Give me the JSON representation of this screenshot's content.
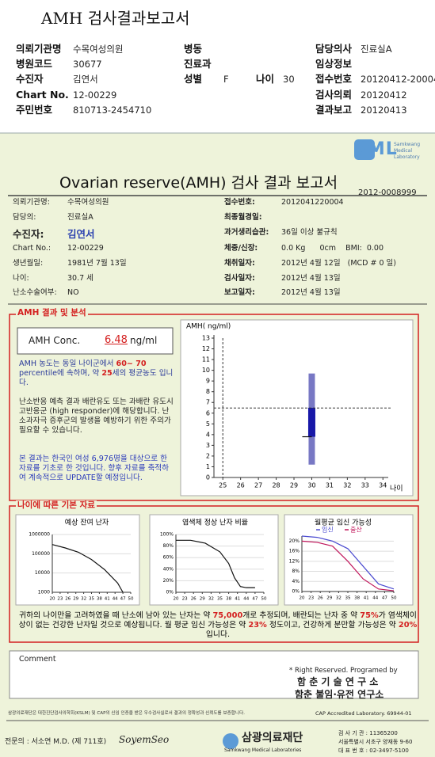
{
  "header": {
    "title": "AMH 검사결과보고서",
    "fields": [
      {
        "label": "의뢰기관명",
        "value": "수목여성의원"
      },
      {
        "label": "병동"
      },
      {
        "label": "담당의사",
        "value": "진료실A"
      },
      {
        "label": "병원코드",
        "value": "30677"
      },
      {
        "label": "진료과"
      },
      {
        "label": "임상정보"
      },
      {
        "label": "수진자",
        "value": "김연서"
      },
      {
        "label": "성별",
        "value": "F"
      },
      {
        "label": "나이",
        "value": "30"
      },
      {
        "label": "접수번호",
        "value": "20120412-20004"
      },
      {
        "label": "Chart No.",
        "value": "12-00229"
      },
      {
        "label": "검사의뢰",
        "value": "20120412"
      },
      {
        "label": "주민번호",
        "value": "810713-2454710"
      },
      {
        "label": "결과보고",
        "value": "20120413"
      }
    ]
  },
  "report": {
    "logo": "SML",
    "logo_sub": [
      "Samkwang",
      "Medical",
      "Laboratory"
    ],
    "title": "Ovarian reserve(AMH) 검사 결과 보고서",
    "doc_no": "2012-0008999",
    "patient_left": [
      {
        "label": "의뢰기관명:",
        "value": "수목여성의원"
      },
      {
        "label": "담당의:",
        "value": "진료실A"
      },
      {
        "label": "수진자:",
        "value": "김연서"
      },
      {
        "label": "Chart No.:",
        "value": "12-00229"
      },
      {
        "label": "생년월일:",
        "value": "1981년 7월 13일"
      },
      {
        "label": "나이:",
        "value": "30.7 세"
      },
      {
        "label": "난소수술여부:",
        "value": "NO"
      }
    ],
    "patient_right": [
      {
        "label": "접수번호:",
        "value": "2012041220004"
      },
      {
        "label": "최종월경일:"
      },
      {
        "label": "과거생리습관:",
        "value": "36일 이상 불규칙"
      },
      {
        "label": "체중/신장:",
        "value": "0.0 Kg      0cm    BMI:  0.00"
      },
      {
        "label": "채취일자:",
        "value": "2012년 4월 12일   (MCD # 0 일)"
      },
      {
        "label": "검사일자:",
        "value": "2012년 4월 13일"
      },
      {
        "label": "보고일자:",
        "value": "2012년 4월 13일"
      }
    ]
  },
  "amh": {
    "section_title": "AMH 결과 및 분석",
    "conc_label": "AMH Conc.",
    "conc_value": "6.48",
    "conc_unit": "ng/ml",
    "para1": [
      "AMH 농도는 동일 나이군에서 ",
      "60~ 70",
      " percentile에 속하며, 약 ",
      "25",
      "세의 평균농도 입니다."
    ],
    "para2": "난소반응 예측 결과 배란유도 또는 과배란 유도시 고반응군 (high responder)에 해당합니다. 난소과자극 증후군의 발생을 예방하기 위한 주의가 필요할 수 있습니다.",
    "para3": "본 결과는 한국인 여성 6,976명을 대상으로 한 자료를 기초로 한 것입니다. 향후 자료를 축적하여 계속적으로 UPDATE할 예정입니다.",
    "chart": {
      "type": "box",
      "y_label": "AMH( ng/ml)",
      "x_label": "나이",
      "xlim": [
        24.5,
        34.3
      ],
      "ylim": [
        0,
        13
      ],
      "xticks": [
        25,
        26,
        27,
        28,
        29,
        30,
        31,
        32,
        33,
        34
      ],
      "yticks": [
        0,
        1,
        2,
        3,
        4,
        5,
        6,
        7,
        8,
        9,
        10,
        11,
        12,
        13
      ],
      "box": {
        "x": 30,
        "low": 1.2,
        "q1": 3.8,
        "q3": 6.5,
        "high": 9.7
      },
      "ref_x": 25,
      "ref_y": 6.48
    }
  },
  "basic": {
    "section_title": "나이에 따른 기본 자료",
    "charts": [
      {
        "type": "line",
        "title": "예상 잔여 난자",
        "log": true,
        "xlim": [
          20,
          50
        ],
        "ylim": [
          1000,
          1000000
        ],
        "xticks": [
          20,
          23,
          26,
          29,
          32,
          35,
          38,
          41,
          44,
          47,
          50
        ],
        "yticks": [
          1000,
          10000,
          100000,
          1000000
        ],
        "x": [
          20,
          25,
          30,
          35,
          40,
          45,
          47
        ],
        "series": [
          {
            "color": "#111111",
            "values": [
              300000,
              200000,
              120000,
              50000,
              15000,
              3000,
              1000
            ]
          }
        ]
      },
      {
        "type": "line",
        "title": "염색체 정상 난자 비율",
        "log": false,
        "xlim": [
          20,
          50
        ],
        "ylim": [
          0,
          100
        ],
        "xticks": [
          20,
          23,
          26,
          29,
          32,
          35,
          38,
          41,
          44,
          47,
          50
        ],
        "yticks": [
          {
            "value": 0,
            "label": "0%"
          },
          {
            "value": 20,
            "label": "20%"
          },
          {
            "value": 40,
            "label": "40%"
          },
          {
            "value": 60,
            "label": "60%"
          },
          {
            "value": 80,
            "label": "80%"
          },
          {
            "value": 100,
            "label": "100%"
          }
        ],
        "x": [
          20,
          25,
          30,
          35,
          38,
          40,
          42,
          44,
          47
        ],
        "series": [
          {
            "color": "#111111",
            "values": [
              90,
              90,
              85,
              70,
              50,
              25,
              10,
              8,
              8
            ]
          }
        ]
      },
      {
        "type": "line",
        "title": "월평균 임신 가능성",
        "log": false,
        "xlim": [
          20,
          50
        ],
        "ylim": [
          0,
          22
        ],
        "xticks": [
          20,
          23,
          26,
          29,
          32,
          35,
          38,
          41,
          44,
          47,
          50
        ],
        "yticks": [
          {
            "value": 0,
            "label": "0%"
          },
          {
            "value": 4,
            "label": "4%"
          },
          {
            "value": 8,
            "label": "8%"
          },
          {
            "value": 12,
            "label": "12%"
          },
          {
            "value": 16,
            "label": "16%"
          },
          {
            "value": 20,
            "label": "20%"
          }
        ],
        "x": [
          20,
          25,
          30,
          35,
          40,
          45,
          50
        ],
        "series": [
          {
            "name": "임신",
            "color": "#4a4ad0",
            "values": [
              22,
              21.5,
              20,
              17,
              10,
              3,
              1
            ]
          },
          {
            "name": "출산",
            "color": "#c0145a",
            "values": [
              20,
              19.5,
              18,
              12,
              5,
              1,
              0.3
            ]
          }
        ]
      }
    ],
    "summary": [
      "귀하의 나이만을 고려하였을 때 난소에 남아 있는 난자는 약 ",
      "75,000",
      "개로 추정되며, 배란되는 난자 중 약 ",
      "75%",
      "가 염색체이상이 없는 건강한 난자일 것으로 예상됩니다. 월 평균 임신 가능성은 약 ",
      "23%",
      " 정도이고, 건강하게 분만할 가능성은 약 ",
      "20%",
      "입니다."
    ]
  },
  "footer": {
    "comment_label": "Comment",
    "rights": "* Right Reserved. Programed by",
    "lab1": "함 춘  기 술  연 구 소",
    "lab2": "함춘 불임·유전 연구소",
    "legal": "삼광의료재단은 대한진단검사의학회(KSLM) 및 CAP의 신임 인증을 받은 우수검사실로서 결과의 정확성과 신뢰도를 보증합니다.",
    "cap": "CAP  Accredited  Laboratory.  69944-01",
    "doctor": "전문의 : 서소연 M.D. (제 711호)",
    "signature": "SoyemSeo",
    "org": "삼광의료재단",
    "org_en": "Samkwang Medical Laboratories",
    "address": [
      "검 사 기 관 : 11365200",
      "서울특별시 서초구 양재동 9-60",
      "대 표 번 호 : 02-3497-5100"
    ]
  }
}
